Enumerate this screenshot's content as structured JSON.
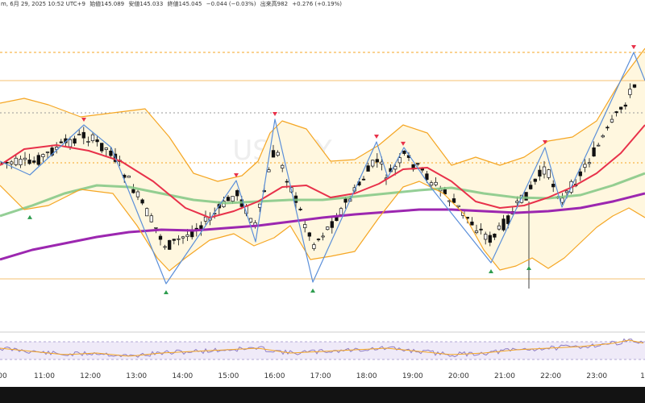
{
  "header": {
    "symbol_suffix": "m, 6月 29, 2025 10:52 UTC+9",
    "open": "始値145.089",
    "high": "安値145.033",
    "close": "終値145.045",
    "change": "−0.044 (−0.03%)",
    "volume": "出来高982",
    "volume_change": "+0.276 (+0.19%)"
  },
  "watermark": "USDJPY",
  "chart_data": {
    "type": "line",
    "x_tick_labels": [
      "11:00",
      "12:00",
      "13:00",
      "14:00",
      "15:00",
      "16:00",
      "17:00",
      "18:00",
      "19:00",
      "20:00",
      "21:00",
      "22:00",
      "23:00"
    ],
    "x_tick_first": "00",
    "x_tick_last": "1",
    "series": [
      {
        "key": "zigzag",
        "color": "#5b8fd9",
        "x": [
          0,
          37,
          104,
          138,
          206,
          293,
          317,
          341,
          388,
          467,
          481,
          501,
          534,
          609,
          676,
          697,
          786,
          800
        ],
        "y": [
          200,
          217,
          155,
          183,
          352,
          224,
          300,
          148,
          350,
          176,
          220,
          183,
          232,
          326,
          183,
          257,
          65,
          100
        ]
      },
      {
        "key": "ema_fast",
        "color": "#e8314a",
        "x": [
          0,
          30,
          70,
          110,
          150,
          190,
          230,
          260,
          290,
          320,
          350,
          380,
          410,
          440,
          470,
          500,
          530,
          560,
          590,
          620,
          650,
          680,
          710,
          740,
          770,
          800
        ],
        "y": [
          205,
          185,
          180,
          187,
          200,
          225,
          258,
          270,
          262,
          250,
          232,
          230,
          245,
          240,
          228,
          210,
          208,
          225,
          250,
          258,
          255,
          245,
          232,
          215,
          190,
          155
        ]
      },
      {
        "key": "sma_mid",
        "color": "#81c784",
        "x": [
          0,
          40,
          80,
          120,
          160,
          200,
          240,
          280,
          320,
          360,
          400,
          440,
          480,
          520,
          560,
          600,
          640,
          680,
          720,
          760,
          800
        ],
        "y": [
          268,
          255,
          240,
          230,
          232,
          240,
          248,
          252,
          250,
          248,
          248,
          244,
          240,
          236,
          233,
          240,
          245,
          246,
          242,
          230,
          215
        ]
      },
      {
        "key": "sma_slow",
        "color": "#9c27b0",
        "x": [
          0,
          40,
          80,
          120,
          160,
          200,
          240,
          280,
          320,
          360,
          400,
          440,
          480,
          520,
          560,
          600,
          640,
          680,
          720,
          760,
          800
        ],
        "y": [
          322,
          310,
          302,
          294,
          288,
          285,
          286,
          283,
          280,
          275,
          270,
          266,
          263,
          260,
          260,
          262,
          264,
          262,
          258,
          250,
          240
        ]
      },
      {
        "key": "bb_upper",
        "color": "#f5a623",
        "x": [
          0,
          30,
          60,
          100,
          140,
          180,
          210,
          240,
          270,
          300,
          320,
          335,
          350,
          380,
          410,
          440,
          470,
          500,
          530,
          560,
          590,
          620,
          650,
          680,
          710,
          740,
          770,
          800
        ],
        "y": [
          128,
          122,
          130,
          145,
          140,
          135,
          170,
          215,
          225,
          218,
          200,
          165,
          150,
          160,
          200,
          198,
          180,
          155,
          165,
          205,
          195,
          205,
          195,
          175,
          170,
          150,
          100,
          60
        ]
      },
      {
        "key": "bb_lower",
        "color": "#f5a623",
        "x": [
          0,
          30,
          60,
          100,
          140,
          170,
          195,
          210,
          230,
          260,
          290,
          315,
          340,
          360,
          385,
          410,
          440,
          470,
          500,
          520,
          550,
          575,
          600,
          620,
          640,
          660,
          680,
          700,
          740,
          760,
          780,
          800
        ],
        "y": [
          230,
          260,
          255,
          235,
          240,
          280,
          320,
          336,
          320,
          298,
          290,
          305,
          295,
          280,
          322,
          318,
          312,
          270,
          232,
          225,
          240,
          265,
          310,
          335,
          330,
          320,
          333,
          320,
          282,
          268,
          258,
          270
        ]
      },
      {
        "key": "rsi",
        "color": "#8e7cc3",
        "x": [
          0,
          40,
          80,
          120,
          160,
          200,
          240,
          280,
          320,
          360,
          400,
          440,
          480,
          520,
          560,
          600,
          640,
          680,
          720,
          760,
          780,
          800
        ],
        "y": [
          432,
          436,
          440,
          438,
          442,
          438,
          436,
          434,
          432,
          438,
          436,
          434,
          432,
          436,
          440,
          438,
          434,
          432,
          430,
          426,
          422,
          426
        ]
      }
    ],
    "horizontal_levels": [
      {
        "y_rel": 65,
        "style": "dashed",
        "color": "#f5a623"
      },
      {
        "y_rel": 100,
        "style": "solid",
        "color": "#f5c070"
      },
      {
        "y_rel": 140,
        "style": "dotted",
        "color": "#999999"
      },
      {
        "y_rel": 202,
        "style": "dotted",
        "color": "#f5a623"
      },
      {
        "y_rel": 346,
        "style": "solid",
        "color": "#f5c070"
      }
    ],
    "markers_up": [
      37,
      206,
      388,
      609,
      656
    ],
    "markers_down": [
      104,
      293,
      341,
      467,
      500,
      676,
      786
    ]
  }
}
